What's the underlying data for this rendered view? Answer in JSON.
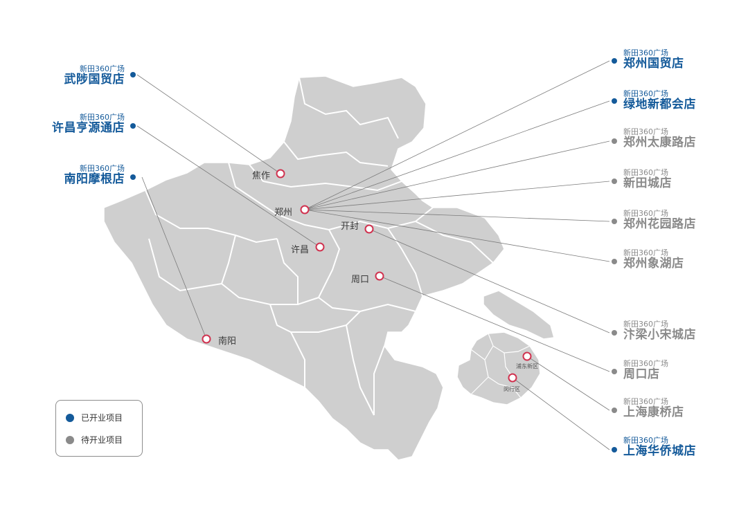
{
  "brand": "新田360广场",
  "colors": {
    "open": "#145a9a",
    "pending": "#8a8a8a",
    "map_fill": "#cfcfcf",
    "marker": "#d0324f"
  },
  "cities": {
    "jiaozuo": "焦作",
    "zhengzhou": "郑州",
    "kaifeng": "开封",
    "xuchang": "许昌",
    "zhoukou": "周口",
    "nanyang": "南阳",
    "pudong": "浦东新区",
    "minhang": "闵行区"
  },
  "stores_left": [
    {
      "brand": "新田360广场",
      "name": "武陟国贸店",
      "status": "open"
    },
    {
      "brand": "新田360广场",
      "name": "许昌亨源通店",
      "status": "open"
    },
    {
      "brand": "新田360广场",
      "name": "南阳摩根店",
      "status": "open"
    }
  ],
  "stores_right": [
    {
      "brand": "新田360广场",
      "name": "郑州国贸店",
      "status": "open"
    },
    {
      "brand": "新田360广场",
      "name": "绿地新都会店",
      "status": "open"
    },
    {
      "brand": "新田360广场",
      "name": "郑州太康路店",
      "status": "pending"
    },
    {
      "brand": "新田360广场",
      "name": "新田城店",
      "status": "pending"
    },
    {
      "brand": "新田360广场",
      "name": "郑州花园路店",
      "status": "pending"
    },
    {
      "brand": "新田360广场",
      "name": "郑州象湖店",
      "status": "pending"
    },
    {
      "brand": "新田360广场",
      "name": "汴梁小宋城店",
      "status": "pending"
    },
    {
      "brand": "新田360广场",
      "name": "周口店",
      "status": "pending"
    },
    {
      "brand": "新田360广场",
      "name": "上海康桥店",
      "status": "pending"
    },
    {
      "brand": "新田360广场",
      "name": "上海华侨城店",
      "status": "open"
    }
  ],
  "legend": {
    "open_label": "已开业项目",
    "pending_label": "待开业项目"
  }
}
